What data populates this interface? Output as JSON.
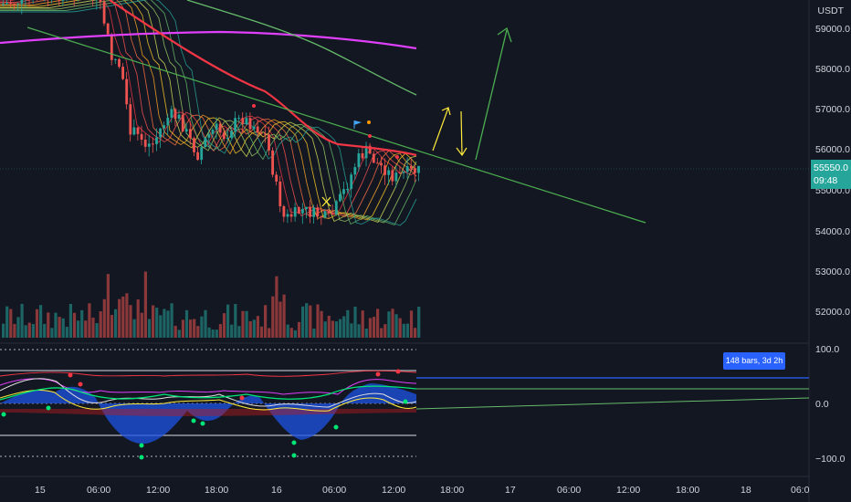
{
  "currency": "USDT",
  "price_axis": [
    "59000.0",
    "58000.0",
    "57000.0",
    "56000.0",
    "55000.0",
    "54000.0",
    "53000.0",
    "52000.0"
  ],
  "last_price": {
    "value": "55550.0",
    "countdown": "09:48"
  },
  "indicator_axis": [
    "100.0",
    "0.0",
    "−100.0"
  ],
  "time_axis": [
    "15",
    "06:00",
    "12:00",
    "18:00",
    "16",
    "06:00",
    "12:00",
    "18:00",
    "17",
    "06:00",
    "12:00",
    "18:00",
    "18",
    "06:0"
  ],
  "bars_range_label": "148 bars, 3d 2h",
  "colors": {
    "background": "#131722",
    "up_candle": "#26a69a",
    "down_candle": "#ef5350",
    "trendline": "#4caf50",
    "arrow_yellow": "#ffeb3b",
    "ma_pink": "#e040fb",
    "ma_red": "#f23645",
    "last_price": "#26a69a",
    "measure_box": "#2962ff"
  },
  "icons": [
    "flag-icon",
    "cross-marker-icon",
    "up-arrow-icon",
    "down-arrow-icon"
  ]
}
